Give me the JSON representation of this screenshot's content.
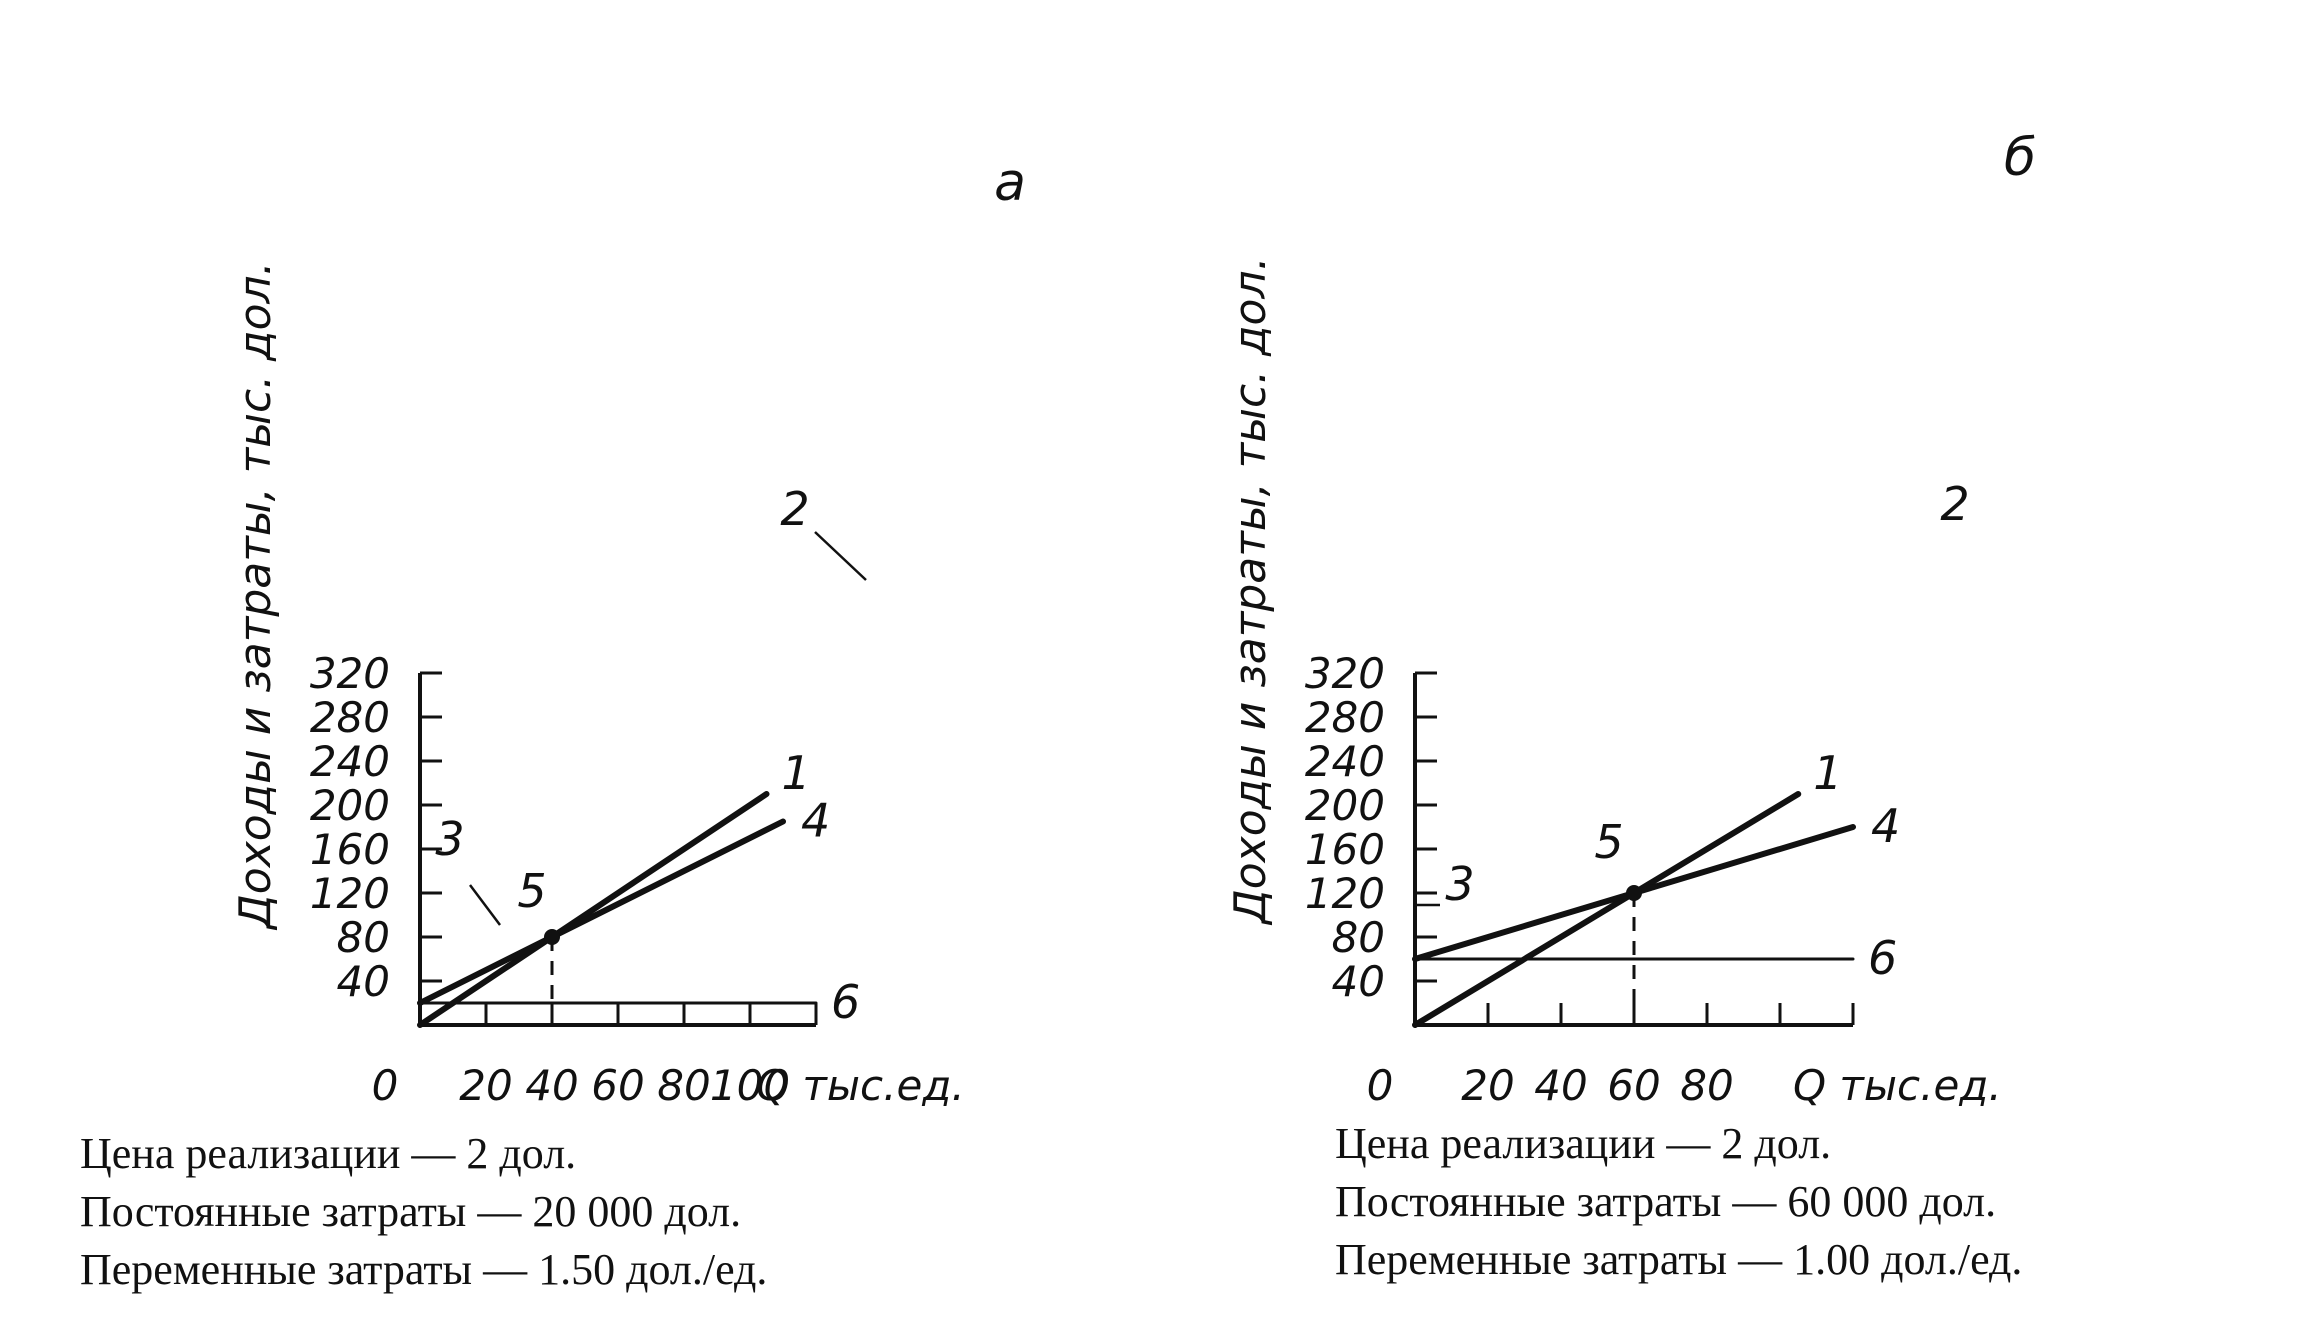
{
  "chart_data": [
    {
      "type": "line",
      "panel_label": "а",
      "ylabel": "Доходы и затраты, тыс. дол.",
      "xlabel": "Q тыс.ед.",
      "origin_label": "0",
      "x_ticks": [
        "20",
        "40",
        "60",
        "80",
        "100"
      ],
      "y_ticks": [
        "40",
        "80",
        "120",
        "160",
        "200",
        "240",
        "280",
        "320"
      ],
      "xlim": [
        0,
        120
      ],
      "ylim": [
        0,
        320
      ],
      "series": [
        {
          "label": "1",
          "x": [
            0,
            105
          ],
          "y": [
            0,
            210
          ]
        },
        {
          "label": "4",
          "x": [
            0,
            110
          ],
          "y": [
            20,
            185
          ]
        },
        {
          "label": "6",
          "x": [
            0,
            120
          ],
          "y": [
            20,
            20
          ]
        }
      ],
      "breakeven": {
        "label": "5",
        "x": 40,
        "y": 80
      },
      "pointer_labels": [
        "2",
        "3"
      ],
      "caption": [
        "Цена реализации — 2 дол.",
        "Постоянные затраты — 20 000 дол.",
        "Переменные затраты — 1.50 дол./ед."
      ]
    },
    {
      "type": "line",
      "panel_label": "б",
      "ylabel": "Доходы и затраты, тыс. дол.",
      "xlabel": "Q тыс.ед.",
      "origin_label": "0",
      "x_ticks": [
        "20",
        "40",
        "60",
        "80"
      ],
      "y_ticks": [
        "40",
        "80",
        "120",
        "160",
        "200",
        "240",
        "280",
        "320"
      ],
      "xlim": [
        0,
        120
      ],
      "ylim": [
        0,
        320
      ],
      "series": [
        {
          "label": "1",
          "x": [
            0,
            105
          ],
          "y": [
            0,
            210
          ]
        },
        {
          "label": "4",
          "x": [
            0,
            120
          ],
          "y": [
            60,
            180
          ]
        },
        {
          "label": "6",
          "x": [
            0,
            120
          ],
          "y": [
            60,
            60
          ]
        }
      ],
      "breakeven": {
        "label": "5",
        "x": 60,
        "y": 120
      },
      "pointer_labels": [
        "2",
        "3"
      ],
      "caption": [
        "Цена реализации — 2 дол.",
        "Постоянные затраты — 60 000 дол.",
        "Переменные затраты — 1.00 дол./ед."
      ]
    }
  ]
}
